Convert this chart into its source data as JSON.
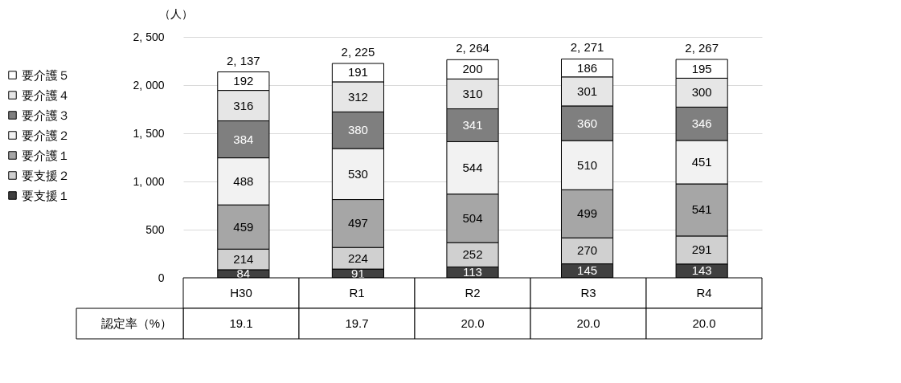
{
  "chart_data": {
    "type": "bar",
    "stacked": true,
    "ylabel": "（人）",
    "categories": [
      "H30",
      "R1",
      "R2",
      "R3",
      "R4"
    ],
    "series": [
      {
        "name": "要支援１",
        "color": "#404040",
        "values": [
          84,
          91,
          113,
          145,
          143
        ]
      },
      {
        "name": "要支援２",
        "color": "#d0d0d0",
        "values": [
          214,
          224,
          252,
          270,
          291
        ]
      },
      {
        "name": "要介護１",
        "color": "#a6a6a6",
        "values": [
          459,
          497,
          504,
          499,
          541
        ]
      },
      {
        "name": "要介護２",
        "color": "#f2f2f2",
        "values": [
          488,
          530,
          544,
          510,
          451
        ]
      },
      {
        "name": "要介護３",
        "color": "#7f7f7f",
        "values": [
          384,
          380,
          341,
          360,
          346
        ]
      },
      {
        "name": "要介護４",
        "color": "#e6e6e6",
        "values": [
          316,
          312,
          310,
          301,
          300
        ]
      },
      {
        "name": "要介護５",
        "color": "#ffffff",
        "values": [
          192,
          191,
          200,
          186,
          195
        ]
      }
    ],
    "totals": [
      "2, 137",
      "2, 225",
      "2, 264",
      "2, 271",
      "2, 267"
    ],
    "data_labels": true,
    "ylim": [
      0,
      2500
    ],
    "yticks": [
      {
        "value": 0,
        "label": "0"
      },
      {
        "value": 500,
        "label": "500"
      },
      {
        "value": 1000,
        "label": "1, 000"
      },
      {
        "value": 1500,
        "label": "1, 500"
      },
      {
        "value": 2000,
        "label": "2, 000"
      },
      {
        "value": 2500,
        "label": "2, 500"
      }
    ],
    "grid": "y",
    "legend": "left",
    "annotations": [
      "認定率（%）",
      "19.1",
      "19.7",
      "20.0",
      "20.0",
      "20.0"
    ]
  }
}
